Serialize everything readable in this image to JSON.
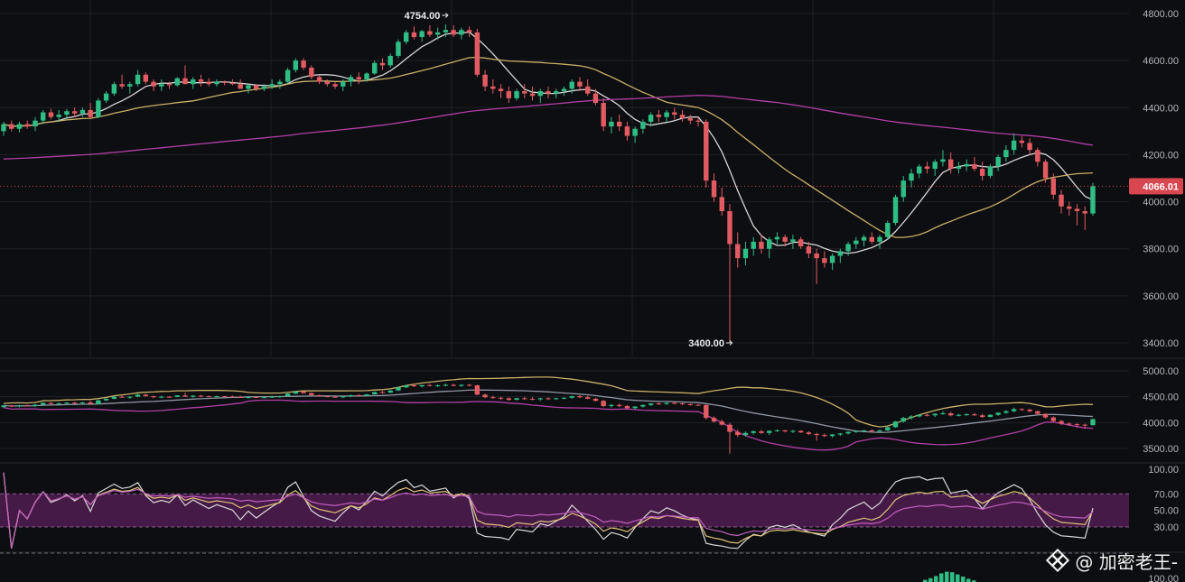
{
  "chart_data": [
    {
      "type": "candlestick",
      "title": "",
      "ylim": [
        3400,
        4840
      ],
      "y_ticks": [
        "4800.00",
        "4600.00",
        "4400.00",
        "4200.00",
        "4000.00",
        "3800.00",
        "3600.00",
        "3400.00"
      ],
      "last_price": "4066.01",
      "annotations": [
        {
          "text": "4754.00",
          "price": 4754
        },
        {
          "text": "3400.00",
          "price": 3400
        }
      ],
      "moving_averages": [
        {
          "color": "#d6d6d6",
          "period": 7
        },
        {
          "color": "#c9b069",
          "period": 25
        },
        {
          "color": "#b23fa6",
          "period": 99
        }
      ],
      "candles": [
        [
          4300,
          4340,
          4280,
          4330
        ],
        [
          4330,
          4345,
          4300,
          4310
        ],
        [
          4310,
          4340,
          4295,
          4330
        ],
        [
          4330,
          4345,
          4310,
          4320
        ],
        [
          4320,
          4360,
          4300,
          4345
        ],
        [
          4345,
          4390,
          4330,
          4380
        ],
        [
          4380,
          4395,
          4350,
          4360
        ],
        [
          4360,
          4390,
          4340,
          4370
        ],
        [
          4370,
          4395,
          4350,
          4385
        ],
        [
          4385,
          4400,
          4360,
          4375
        ],
        [
          4375,
          4400,
          4360,
          4390
        ],
        [
          4390,
          4420,
          4350,
          4360
        ],
        [
          4360,
          4440,
          4355,
          4430
        ],
        [
          4430,
          4470,
          4420,
          4460
        ],
        [
          4460,
          4510,
          4450,
          4500
        ],
        [
          4500,
          4540,
          4480,
          4490
        ],
        [
          4490,
          4510,
          4460,
          4500
        ],
        [
          4500,
          4560,
          4490,
          4540
        ],
        [
          4540,
          4550,
          4500,
          4510
        ],
        [
          4510,
          4520,
          4470,
          4490
        ],
        [
          4490,
          4520,
          4470,
          4500
        ],
        [
          4500,
          4510,
          4480,
          4495
        ],
        [
          4495,
          4530,
          4490,
          4525
        ],
        [
          4525,
          4580,
          4500,
          4500
        ],
        [
          4500,
          4530,
          4480,
          4520
        ],
        [
          4520,
          4540,
          4490,
          4510
        ],
        [
          4510,
          4525,
          4490,
          4500
        ],
        [
          4500,
          4520,
          4490,
          4510
        ],
        [
          4510,
          4515,
          4495,
          4505
        ],
        [
          4505,
          4520,
          4495,
          4500
        ],
        [
          4500,
          4520,
          4480,
          4480
        ],
        [
          4480,
          4500,
          4460,
          4495
        ],
        [
          4495,
          4500,
          4470,
          4480
        ],
        [
          4480,
          4500,
          4470,
          4490
        ],
        [
          4490,
          4520,
          4480,
          4500
        ],
        [
          4500,
          4520,
          4480,
          4510
        ],
        [
          4510,
          4570,
          4500,
          4560
        ],
        [
          4560,
          4610,
          4550,
          4600
        ],
        [
          4600,
          4610,
          4560,
          4570
        ],
        [
          4570,
          4580,
          4520,
          4530
        ],
        [
          4530,
          4540,
          4500,
          4510
        ],
        [
          4510,
          4520,
          4490,
          4500
        ],
        [
          4500,
          4510,
          4480,
          4490
        ],
        [
          4490,
          4520,
          4470,
          4510
        ],
        [
          4510,
          4540,
          4490,
          4530
        ],
        [
          4530,
          4550,
          4500,
          4520
        ],
        [
          4520,
          4550,
          4510,
          4545
        ],
        [
          4545,
          4600,
          4540,
          4590
        ],
        [
          4590,
          4610,
          4560,
          4580
        ],
        [
          4580,
          4630,
          4570,
          4620
        ],
        [
          4620,
          4690,
          4610,
          4680
        ],
        [
          4680,
          4730,
          4670,
          4720
        ],
        [
          4720,
          4745,
          4690,
          4700
        ],
        [
          4700,
          4730,
          4680,
          4725
        ],
        [
          4725,
          4750,
          4700,
          4710
        ],
        [
          4710,
          4740,
          4690,
          4720
        ],
        [
          4720,
          4754,
          4700,
          4730
        ],
        [
          4730,
          4750,
          4700,
          4710
        ],
        [
          4710,
          4740,
          4690,
          4730
        ],
        [
          4730,
          4745,
          4700,
          4720
        ],
        [
          4720,
          4735,
          4530,
          4540
        ],
        [
          4540,
          4560,
          4470,
          4490
        ],
        [
          4490,
          4520,
          4460,
          4480
        ],
        [
          4480,
          4500,
          4440,
          4470
        ],
        [
          4470,
          4490,
          4420,
          4440
        ],
        [
          4440,
          4480,
          4430,
          4470
        ],
        [
          4470,
          4500,
          4440,
          4460
        ],
        [
          4460,
          4490,
          4430,
          4450
        ],
        [
          4450,
          4480,
          4420,
          4470
        ],
        [
          4470,
          4490,
          4440,
          4460
        ],
        [
          4460,
          4480,
          4440,
          4470
        ],
        [
          4470,
          4490,
          4450,
          4480
        ],
        [
          4480,
          4520,
          4460,
          4510
        ],
        [
          4510,
          4530,
          4470,
          4490
        ],
        [
          4490,
          4520,
          4450,
          4460
        ],
        [
          4460,
          4480,
          4410,
          4420
        ],
        [
          4420,
          4440,
          4300,
          4320
        ],
        [
          4320,
          4360,
          4290,
          4340
        ],
        [
          4340,
          4370,
          4300,
          4320
        ],
        [
          4320,
          4340,
          4260,
          4280
        ],
        [
          4280,
          4320,
          4250,
          4310
        ],
        [
          4310,
          4350,
          4290,
          4340
        ],
        [
          4340,
          4380,
          4320,
          4370
        ],
        [
          4370,
          4390,
          4340,
          4360
        ],
        [
          4360,
          4390,
          4340,
          4380
        ],
        [
          4380,
          4400,
          4350,
          4370
        ],
        [
          4370,
          4390,
          4340,
          4355
        ],
        [
          4355,
          4370,
          4330,
          4345
        ],
        [
          4345,
          4360,
          4320,
          4340
        ],
        [
          4340,
          4350,
          4060,
          4090
        ],
        [
          4090,
          4120,
          4000,
          4020
        ],
        [
          4020,
          4060,
          3940,
          3960
        ],
        [
          3960,
          3990,
          3400,
          3820
        ],
        [
          3820,
          3870,
          3720,
          3760
        ],
        [
          3760,
          3830,
          3730,
          3800
        ],
        [
          3800,
          3850,
          3770,
          3830
        ],
        [
          3830,
          3860,
          3780,
          3800
        ],
        [
          3800,
          3850,
          3760,
          3840
        ],
        [
          3840,
          3870,
          3820,
          3850
        ],
        [
          3850,
          3860,
          3810,
          3830
        ],
        [
          3830,
          3860,
          3800,
          3840
        ],
        [
          3840,
          3850,
          3800,
          3810
        ],
        [
          3810,
          3830,
          3760,
          3780
        ],
        [
          3780,
          3800,
          3650,
          3760
        ],
        [
          3760,
          3790,
          3720,
          3740
        ],
        [
          3740,
          3780,
          3710,
          3770
        ],
        [
          3770,
          3800,
          3740,
          3790
        ],
        [
          3790,
          3830,
          3770,
          3820
        ],
        [
          3820,
          3850,
          3800,
          3835
        ],
        [
          3835,
          3860,
          3810,
          3850
        ],
        [
          3850,
          3870,
          3820,
          3830
        ],
        [
          3830,
          3860,
          3800,
          3850
        ],
        [
          3850,
          3920,
          3840,
          3910
        ],
        [
          3910,
          4030,
          3900,
          4020
        ],
        [
          4020,
          4110,
          4000,
          4090
        ],
        [
          4090,
          4140,
          4060,
          4120
        ],
        [
          4120,
          4160,
          4100,
          4150
        ],
        [
          4150,
          4170,
          4120,
          4140
        ],
        [
          4140,
          4180,
          4110,
          4170
        ],
        [
          4170,
          4220,
          4150,
          4180
        ],
        [
          4180,
          4210,
          4120,
          4140
        ],
        [
          4140,
          4170,
          4120,
          4150
        ],
        [
          4150,
          4180,
          4130,
          4160
        ],
        [
          4160,
          4190,
          4130,
          4140
        ],
        [
          4140,
          4170,
          4090,
          4110
        ],
        [
          4110,
          4160,
          4100,
          4150
        ],
        [
          4150,
          4200,
          4130,
          4190
        ],
        [
          4190,
          4240,
          4170,
          4220
        ],
        [
          4220,
          4290,
          4200,
          4260
        ],
        [
          4260,
          4280,
          4230,
          4250
        ],
        [
          4250,
          4270,
          4200,
          4220
        ],
        [
          4220,
          4230,
          4150,
          4170
        ],
        [
          4170,
          4180,
          4080,
          4100
        ],
        [
          4100,
          4120,
          4010,
          4030
        ],
        [
          4030,
          4050,
          3950,
          3980
        ],
        [
          3980,
          4000,
          3940,
          3970
        ],
        [
          3970,
          3990,
          3900,
          3960
        ],
        [
          3960,
          3980,
          3880,
          3950
        ],
        [
          3950,
          4080,
          3940,
          4066
        ]
      ]
    },
    {
      "type": "line",
      "ylim": [
        3250,
        5250
      ],
      "y_ticks": [
        "5000.00",
        "4500.00",
        "4000.00",
        "3500.00"
      ],
      "bands": [
        {
          "color": "#c9b069",
          "role": "upper"
        },
        {
          "color": "#8f96a3",
          "role": "middle"
        },
        {
          "color": "#b23fa6",
          "role": "lower"
        }
      ]
    },
    {
      "type": "line",
      "ylim": [
        0,
        100
      ],
      "y_ticks": [
        "100.00",
        "70.00",
        "50.00",
        "30.00"
      ],
      "band": [
        30,
        70
      ],
      "band_color": "#5a1f5a",
      "lines": [
        {
          "color": "#d8d8d8"
        },
        {
          "color": "#e0c27a"
        },
        {
          "color": "#c060c0"
        }
      ]
    },
    {
      "type": "bar",
      "y_ticks": [
        "100.00"
      ],
      "values": [
        20,
        35,
        55,
        80,
        95,
        90,
        70,
        50,
        30,
        15
      ]
    }
  ],
  "watermark": {
    "text": "@ 加密老王-",
    "logo_icon": "binance-square-icon"
  },
  "colors": {
    "up": "#2ebd85",
    "down": "#e25b63",
    "grid": "#1e2027",
    "last_price_bg": "#d8474f"
  }
}
